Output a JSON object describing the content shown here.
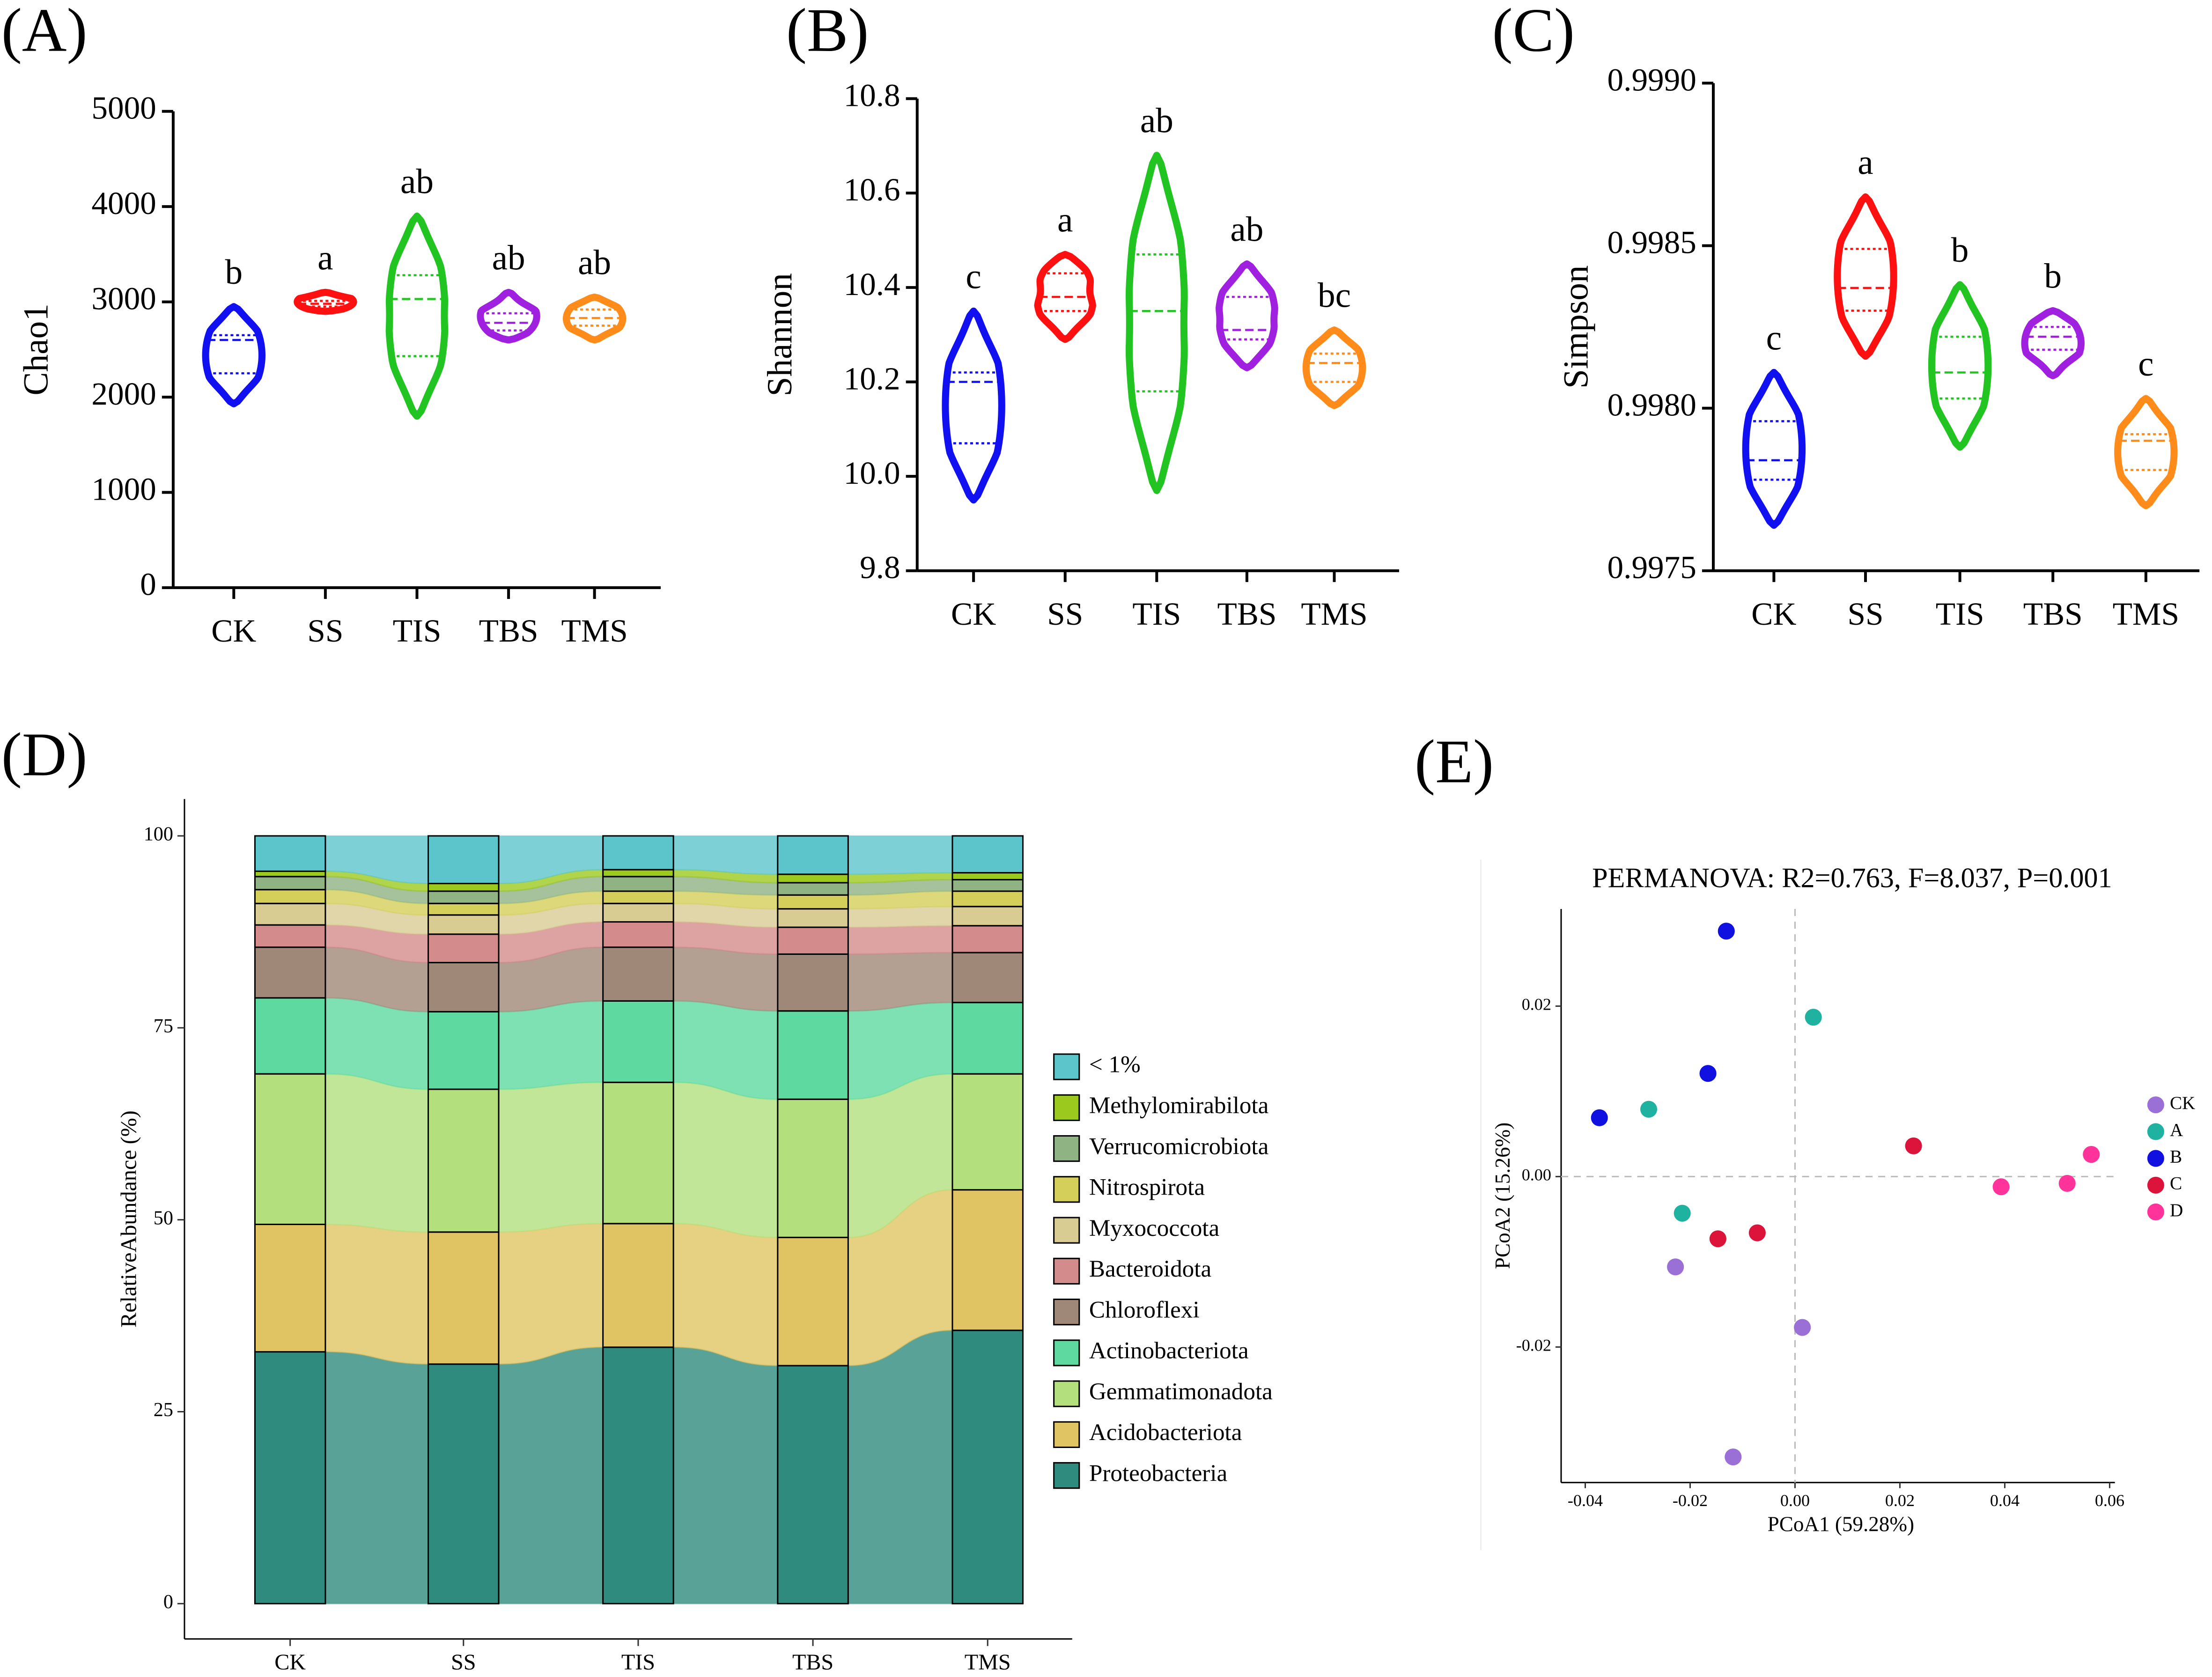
{
  "chart_data": [
    {
      "type": "violin",
      "panel": "(A)",
      "ylabel": "Chao1",
      "categories": [
        "CK",
        "SS",
        "TIS",
        "TBS",
        "TMS"
      ],
      "colors": [
        "#1010f0",
        "#ff1010",
        "#22c422",
        "#a020e0",
        "#ff8c1a"
      ],
      "min": [
        1930,
        2900,
        1800,
        2600,
        2600
      ],
      "q1": [
        2250,
        2950,
        2430,
        2700,
        2750
      ],
      "median": [
        2600,
        2980,
        3030,
        2780,
        2830
      ],
      "q3": [
        2650,
        3010,
        3280,
        2880,
        2920
      ],
      "max": [
        2950,
        3100,
        3900,
        3100,
        3050
      ],
      "letters": [
        "b",
        "a",
        "ab",
        "ab",
        "ab"
      ],
      "ylim": [
        0,
        5000
      ],
      "yticks": [
        0,
        1000,
        2000,
        3000,
        4000,
        5000
      ]
    },
    {
      "type": "violin",
      "panel": "(B)",
      "ylabel": "Shannon",
      "categories": [
        "CK",
        "SS",
        "TIS",
        "TBS",
        "TMS"
      ],
      "colors": [
        "#1010f0",
        "#ff1010",
        "#22c422",
        "#a020e0",
        "#ff8c1a"
      ],
      "min": [
        9.95,
        10.29,
        9.97,
        10.23,
        10.15
      ],
      "q1": [
        10.07,
        10.35,
        10.18,
        10.29,
        10.2
      ],
      "median": [
        10.2,
        10.38,
        10.35,
        10.31,
        10.24
      ],
      "q3": [
        10.22,
        10.43,
        10.47,
        10.38,
        10.26
      ],
      "max": [
        10.35,
        10.47,
        10.68,
        10.45,
        10.31
      ],
      "letters": [
        "c",
        "a",
        "ab",
        "ab",
        "bc"
      ],
      "ylim": [
        9.8,
        10.8
      ],
      "yticks": [
        9.8,
        {
          "value": 10,
          "label": "10.0"
        },
        10.2,
        10.4,
        10.6,
        10.8
      ]
    },
    {
      "type": "violin",
      "panel": "(C)",
      "ylabel": "Simpson",
      "categories": [
        "CK",
        "SS",
        "TIS",
        "TBS",
        "TMS"
      ],
      "colors": [
        "#1010f0",
        "#ff1010",
        "#22c422",
        "#a020e0",
        "#ff8c1a"
      ],
      "min": [
        0.99764,
        0.99816,
        0.99788,
        0.9981,
        0.9977
      ],
      "q1": [
        0.99778,
        0.9983,
        0.99803,
        0.99818,
        0.99781
      ],
      "median": [
        0.99784,
        0.99837,
        0.99811,
        0.99822,
        0.9979
      ],
      "q3": [
        0.99796,
        0.99849,
        0.99822,
        0.99825,
        0.99792
      ],
      "max": [
        0.99811,
        0.99865,
        0.99838,
        0.9983,
        0.99803
      ],
      "letters": [
        "c",
        "a",
        "b",
        "b",
        "c"
      ],
      "ylim": [
        0.9975,
        0.999
      ],
      "yticks": [
        0.9975,
        {
          "value": 0.998,
          "label": "0.9980"
        },
        0.9985,
        {
          "value": 0.999,
          "label": "0.9990"
        }
      ]
    },
    {
      "type": "stacked_bar",
      "panel": "(D)",
      "ylabel": "RelativeAbundance (%)",
      "categories": [
        "CK",
        "SS",
        "TIS",
        "TBS",
        "TMS"
      ],
      "ylim": [
        -4.6,
        104.8
      ],
      "yticks": [
        0,
        25,
        50,
        75,
        100
      ],
      "series": [
        {
          "name": "Proteobacteria",
          "color": "#2e8b7e",
          "values": [
            32.8,
            31.2,
            33.4,
            31.0,
            35.6
          ]
        },
        {
          "name": "Acidobacteriota",
          "color": "#e0c463",
          "values": [
            16.6,
            17.2,
            16.1,
            16.7,
            18.3
          ]
        },
        {
          "name": "Gemmatimonadota",
          "color": "#b3e07d",
          "values": [
            19.6,
            18.6,
            18.4,
            18.0,
            15.1
          ]
        },
        {
          "name": "Actinobacteriota",
          "color": "#5ed9a0",
          "values": [
            9.9,
            10.1,
            10.6,
            11.5,
            9.3
          ]
        },
        {
          "name": "Chloroflexi",
          "color": "#a08878",
          "values": [
            6.6,
            6.4,
            7.0,
            7.4,
            6.5
          ]
        },
        {
          "name": "Bacteroidota",
          "color": "#d48b8b",
          "values": [
            2.9,
            3.7,
            3.3,
            3.5,
            3.5
          ]
        },
        {
          "name": "Myxococcota",
          "color": "#d9cc93",
          "values": [
            2.8,
            2.5,
            2.4,
            2.4,
            2.5
          ]
        },
        {
          "name": "Nitrospirota",
          "color": "#d4cf5a",
          "values": [
            1.8,
            1.5,
            1.6,
            1.8,
            2.0
          ]
        },
        {
          "name": "Verrucomicrobiota",
          "color": "#8fb383",
          "values": [
            1.7,
            1.6,
            1.9,
            1.6,
            1.5
          ]
        },
        {
          "name": "Methylomirabilota",
          "color": "#9cc91e",
          "values": [
            0.7,
            1.0,
            0.9,
            1.1,
            0.9
          ]
        },
        {
          "name": "< 1%",
          "color": "#5cc5cc",
          "values": [
            4.6,
            6.2,
            4.4,
            5.0,
            4.8
          ]
        }
      ]
    },
    {
      "type": "scatter",
      "panel": "(E)",
      "title": "PERMANOVA: R2=0.763, F=8.037, P=0.001",
      "xlabel": "PCoA1 (59.28%)",
      "ylabel": "PCoA2 (15.26%)",
      "xlim": [
        -0.0446,
        0.061
      ],
      "ylim": [
        -0.0359,
        0.0314
      ],
      "xticks": [
        -0.04,
        -0.02,
        {
          "value": 0,
          "label": "0.00"
        },
        0.02,
        0.04,
        0.06
      ],
      "yticks": [
        -0.02,
        {
          "value": 0,
          "label": "0.00"
        },
        0.02
      ],
      "series": [
        {
          "name": "CK",
          "color": "#9a6fd6",
          "x": [
            -0.0228,
            0.0014,
            -0.0118
          ],
          "values": [
            -0.0106,
            -0.0177,
            -0.0329
          ]
        },
        {
          "name": "A",
          "color": "#20b2a0",
          "x": [
            0.0035,
            -0.0279,
            -0.0215
          ],
          "values": [
            0.0187,
            0.0079,
            -0.0043
          ]
        },
        {
          "name": "B",
          "color": "#1010e0",
          "x": [
            -0.0131,
            -0.0166,
            -0.0373
          ],
          "values": [
            0.0288,
            0.0121,
            0.0069
          ]
        },
        {
          "name": "C",
          "color": "#dc143c",
          "x": [
            0.0226,
            -0.0147,
            -0.0072
          ],
          "values": [
            0.0036,
            -0.0073,
            -0.0066
          ]
        },
        {
          "name": "D",
          "color": "#ff3399",
          "x": [
            0.0565,
            0.0393,
            0.0519
          ],
          "values": [
            0.0026,
            -0.0012,
            -0.0008
          ]
        }
      ]
    }
  ]
}
